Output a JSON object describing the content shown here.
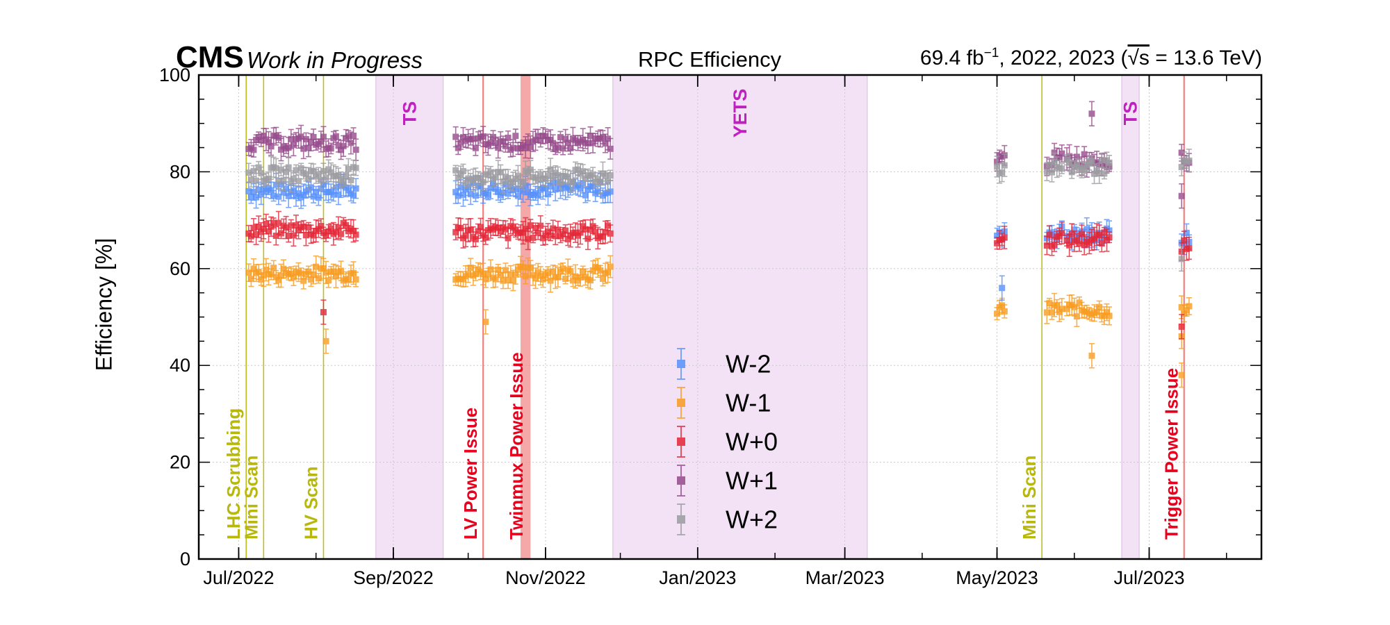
{
  "header": {
    "experiment": "CMS",
    "status": "Work in Progress",
    "title": "RPC Efficiency",
    "lumi_prefix": "69.4 fb",
    "lumi_exp": "−1",
    "lumi_years": ", 2022, 2023 (",
    "lumi_sqrt": "√s",
    "lumi_energy": " = 13.6 TeV)"
  },
  "colors": {
    "W-2": "#5790fc",
    "W-1": "#f89c20",
    "W+0": "#e42536",
    "W+1": "#964a8b",
    "W+2": "#9c9ca1",
    "shade": "#f3e2f6",
    "shade_label": "#c020c0",
    "scan_line": "#bfbf1a",
    "scan_label": "#b8b80c",
    "issue_line": "#f08080",
    "issue_label": "#e8001c"
  },
  "chart_data": {
    "type": "scatter",
    "ylabel": "Efficiency [%]",
    "ylim": [
      0,
      100
    ],
    "xlim": [
      "2022-06-15",
      "2023-08-15"
    ],
    "x_tick_labels": [
      {
        "date": "2022-07-01",
        "label": "Jul/2022"
      },
      {
        "date": "2022-09-01",
        "label": "Sep/2022"
      },
      {
        "date": "2022-11-01",
        "label": "Nov/2022"
      },
      {
        "date": "2023-01-01",
        "label": "Jan/2023"
      },
      {
        "date": "2023-03-01",
        "label": "Mar/2023"
      },
      {
        "date": "2023-05-01",
        "label": "May/2023"
      },
      {
        "date": "2023-07-01",
        "label": "Jul/2023"
      }
    ],
    "y_ticks": [
      0,
      20,
      40,
      60,
      80,
      100
    ],
    "grid": true,
    "legend_position": "center",
    "shaded_periods": [
      {
        "start": "2022-08-25",
        "end": "2022-09-21",
        "label": "TS"
      },
      {
        "start": "2022-11-28",
        "end": "2023-03-10",
        "label": "YETS"
      },
      {
        "start": "2023-06-20",
        "end": "2023-06-27",
        "label": "TS"
      }
    ],
    "annotations": [
      {
        "date": "2022-07-04",
        "label": "LHC Scrubbing",
        "kind": "scan"
      },
      {
        "date": "2022-07-11",
        "label": "Mini Scan",
        "kind": "scan"
      },
      {
        "date": "2022-08-04",
        "label": "HV Scan",
        "kind": "scan"
      },
      {
        "date": "2022-10-07",
        "label": "LV Power Issue",
        "kind": "issue"
      },
      {
        "date": "2022-10-22",
        "label": "Twinmux Power Issue",
        "kind": "issue",
        "band_end": "2022-10-26"
      },
      {
        "date": "2023-05-19",
        "label": "Mini Scan",
        "kind": "scan"
      },
      {
        "date": "2023-07-15",
        "label": "Trigger Power Issue",
        "kind": "issue"
      }
    ],
    "data_periods": [
      {
        "start": "2022-07-05",
        "end": "2022-08-17"
      },
      {
        "start": "2022-09-26",
        "end": "2022-11-27"
      },
      {
        "start": "2023-05-01",
        "end": "2023-05-04"
      },
      {
        "start": "2023-05-21",
        "end": "2023-05-27"
      },
      {
        "start": "2023-05-29",
        "end": "2023-06-15"
      },
      {
        "start": "2023-07-14",
        "end": "2023-07-17"
      }
    ],
    "series": [
      {
        "name": "W-2",
        "values": [
          76,
          76.5,
          66.5,
          67.5,
          67,
          66
        ]
      },
      {
        "name": "W-1",
        "values": [
          59,
          59,
          51.5,
          51.5,
          51.5,
          51
        ]
      },
      {
        "name": "W+0",
        "values": [
          68,
          67.5,
          66,
          66,
          66,
          65
        ]
      },
      {
        "name": "W+1",
        "values": [
          86,
          86,
          82.5,
          82.5,
          82.5,
          82.5
        ]
      },
      {
        "name": "W+2",
        "values": [
          79.5,
          79,
          81,
          81,
          81,
          81
        ]
      }
    ],
    "outliers": [
      {
        "series": "W-1",
        "date": "2022-08-05",
        "value": 45
      },
      {
        "series": "W+0",
        "date": "2022-08-04",
        "value": 51
      },
      {
        "series": "W-1",
        "date": "2022-10-08",
        "value": 49
      },
      {
        "series": "W-1",
        "date": "2023-06-08",
        "value": 42
      },
      {
        "series": "W+1",
        "date": "2023-06-08",
        "value": 92
      },
      {
        "series": "W-2",
        "date": "2023-05-03",
        "value": 56
      },
      {
        "series": "W-1",
        "date": "2023-07-14",
        "value": 38
      },
      {
        "series": "W-1",
        "date": "2023-07-14",
        "value": 46
      },
      {
        "series": "W+0",
        "date": "2023-07-14",
        "value": 48
      },
      {
        "series": "W+2",
        "date": "2023-07-14",
        "value": 62
      },
      {
        "series": "W+1",
        "date": "2023-07-14",
        "value": 75
      }
    ]
  }
}
